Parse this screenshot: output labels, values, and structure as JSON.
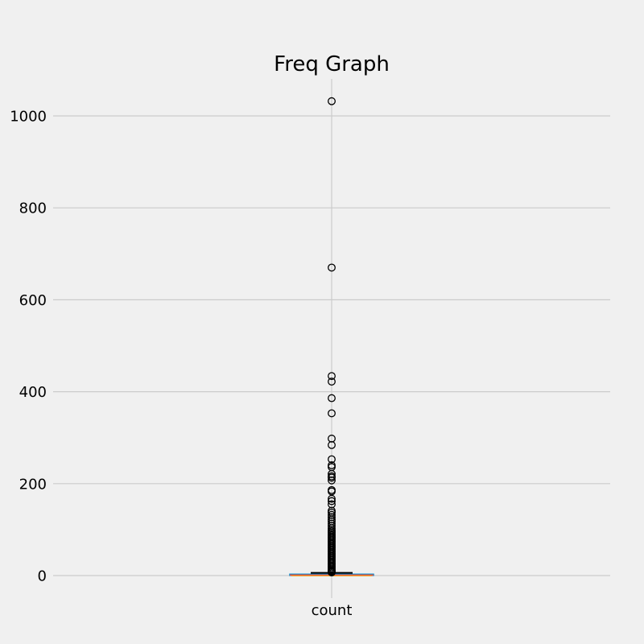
{
  "chart_data": {
    "type": "box",
    "title": "Freq Graph",
    "xlabel": "",
    "ylabel": "",
    "categories": [
      "count"
    ],
    "y_ticks": [
      0,
      200,
      400,
      600,
      800,
      1000
    ],
    "ylim": [
      -50,
      1083
    ],
    "grid": true,
    "box": {
      "min": 1,
      "q1": 1,
      "median": 1,
      "q3": 3,
      "max": 6
    },
    "outliers": [
      1032,
      670,
      434,
      422,
      386,
      353,
      298,
      284,
      253,
      240,
      236,
      221,
      216,
      213,
      207,
      186,
      183,
      167,
      162,
      155,
      141,
      137,
      132,
      127,
      122,
      118,
      113,
      108,
      103,
      99,
      96,
      93,
      90,
      87,
      84,
      81,
      78,
      75,
      72,
      69,
      66,
      63,
      60,
      57,
      54,
      51,
      48,
      45,
      42,
      39,
      36,
      33,
      30,
      27,
      24,
      21,
      18,
      15,
      12,
      10,
      8,
      7
    ],
    "colors": {
      "background": "#f0f0f0",
      "grid": "#cbcbcb",
      "box": "#008fd5",
      "whisker": "#008fd5",
      "cap": "#000000",
      "median": "#fc4f30",
      "outlier_edge": "#000000"
    }
  }
}
